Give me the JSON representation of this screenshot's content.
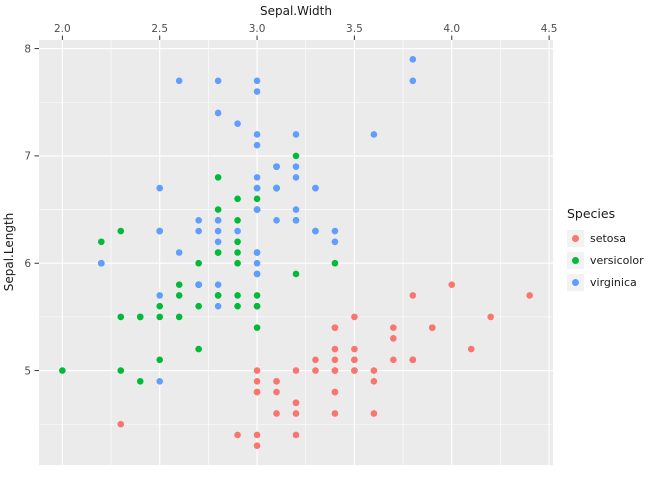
{
  "chart_data": {
    "type": "scatter",
    "xlabel": "Sepal.Width",
    "ylabel": "Sepal.Length",
    "axis_position": {
      "x": "top",
      "y": "left"
    },
    "xlim": [
      1.88,
      4.52
    ],
    "ylim": [
      4.12,
      8.08
    ],
    "x_ticks": [
      2.0,
      2.5,
      3.0,
      3.5,
      4.0,
      4.5
    ],
    "x_tick_labels": [
      "2.0",
      "2.5",
      "3.0",
      "3.5",
      "4.0",
      "4.5"
    ],
    "y_ticks": [
      5,
      6,
      7,
      8
    ],
    "y_tick_labels": [
      "5",
      "6",
      "7",
      "8"
    ],
    "x_minor_ticks": [
      2.25,
      2.75,
      3.25,
      3.75,
      4.25
    ],
    "y_minor_ticks": [
      4.5,
      5.5,
      6.5,
      7.5
    ],
    "grid": "on",
    "grid_color": "#FFFFFF",
    "panel_background": "#EBEBEB",
    "tick_mark_color": "#333333",
    "legend": {
      "title": "Species",
      "position": "right"
    },
    "series": [
      {
        "name": "setosa",
        "color": "#F8766D",
        "points": [
          [
            3.5,
            5.1
          ],
          [
            3.0,
            4.9
          ],
          [
            3.2,
            4.7
          ],
          [
            3.1,
            4.6
          ],
          [
            3.6,
            5.0
          ],
          [
            3.9,
            5.4
          ],
          [
            3.4,
            4.6
          ],
          [
            3.4,
            5.0
          ],
          [
            2.9,
            4.4
          ],
          [
            3.1,
            4.9
          ],
          [
            3.7,
            5.4
          ],
          [
            3.4,
            4.8
          ],
          [
            3.0,
            4.8
          ],
          [
            3.0,
            4.3
          ],
          [
            4.0,
            5.8
          ],
          [
            4.4,
            5.7
          ],
          [
            3.9,
            5.4
          ],
          [
            3.5,
            5.1
          ],
          [
            3.8,
            5.7
          ],
          [
            3.8,
            5.1
          ],
          [
            3.4,
            5.4
          ],
          [
            3.7,
            5.1
          ],
          [
            3.6,
            4.6
          ],
          [
            3.3,
            5.1
          ],
          [
            3.4,
            4.8
          ],
          [
            3.0,
            5.0
          ],
          [
            3.4,
            5.0
          ],
          [
            3.5,
            5.2
          ],
          [
            3.4,
            5.2
          ],
          [
            3.2,
            4.7
          ],
          [
            3.1,
            4.8
          ],
          [
            3.4,
            5.4
          ],
          [
            4.1,
            5.2
          ],
          [
            4.2,
            5.5
          ],
          [
            3.1,
            4.9
          ],
          [
            3.2,
            5.0
          ],
          [
            3.5,
            5.5
          ],
          [
            3.6,
            4.9
          ],
          [
            3.0,
            4.4
          ],
          [
            3.4,
            5.1
          ],
          [
            3.5,
            5.0
          ],
          [
            2.3,
            4.5
          ],
          [
            3.2,
            4.4
          ],
          [
            3.5,
            5.0
          ],
          [
            3.8,
            5.1
          ],
          [
            3.0,
            4.8
          ],
          [
            3.8,
            5.1
          ],
          [
            3.2,
            4.6
          ],
          [
            3.7,
            5.3
          ],
          [
            3.3,
            5.0
          ]
        ]
      },
      {
        "name": "versicolor",
        "color": "#00BA38",
        "points": [
          [
            3.2,
            7.0
          ],
          [
            3.2,
            6.4
          ],
          [
            3.1,
            6.9
          ],
          [
            2.3,
            5.5
          ],
          [
            2.8,
            6.5
          ],
          [
            2.8,
            5.7
          ],
          [
            3.3,
            6.3
          ],
          [
            2.4,
            4.9
          ],
          [
            2.9,
            6.6
          ],
          [
            2.7,
            5.2
          ],
          [
            2.0,
            5.0
          ],
          [
            3.0,
            5.9
          ],
          [
            2.2,
            6.0
          ],
          [
            2.9,
            6.1
          ],
          [
            2.9,
            5.6
          ],
          [
            3.1,
            6.7
          ],
          [
            3.0,
            5.6
          ],
          [
            2.7,
            5.8
          ],
          [
            2.2,
            6.2
          ],
          [
            2.5,
            5.6
          ],
          [
            3.2,
            5.9
          ],
          [
            2.8,
            6.1
          ],
          [
            2.5,
            6.3
          ],
          [
            2.8,
            6.1
          ],
          [
            2.9,
            6.4
          ],
          [
            3.0,
            6.6
          ],
          [
            2.8,
            6.8
          ],
          [
            3.0,
            6.7
          ],
          [
            2.9,
            6.0
          ],
          [
            2.6,
            5.7
          ],
          [
            2.4,
            5.5
          ],
          [
            2.4,
            5.5
          ],
          [
            2.7,
            5.8
          ],
          [
            2.7,
            6.0
          ],
          [
            3.0,
            5.4
          ],
          [
            3.4,
            6.0
          ],
          [
            3.1,
            6.7
          ],
          [
            2.3,
            6.3
          ],
          [
            3.0,
            5.6
          ],
          [
            2.5,
            5.5
          ],
          [
            2.6,
            5.5
          ],
          [
            3.0,
            6.1
          ],
          [
            2.6,
            5.8
          ],
          [
            2.3,
            5.0
          ],
          [
            2.7,
            5.6
          ],
          [
            3.0,
            5.7
          ],
          [
            2.9,
            5.7
          ],
          [
            2.9,
            6.2
          ],
          [
            2.5,
            5.1
          ],
          [
            2.8,
            5.7
          ]
        ]
      },
      {
        "name": "virginica",
        "color": "#619CFF",
        "points": [
          [
            3.3,
            6.3
          ],
          [
            2.7,
            5.8
          ],
          [
            3.0,
            7.1
          ],
          [
            2.9,
            6.3
          ],
          [
            3.0,
            6.5
          ],
          [
            3.0,
            7.6
          ],
          [
            2.5,
            4.9
          ],
          [
            2.9,
            7.3
          ],
          [
            2.5,
            6.7
          ],
          [
            3.6,
            7.2
          ],
          [
            3.2,
            6.5
          ],
          [
            2.7,
            6.4
          ],
          [
            3.0,
            6.8
          ],
          [
            2.5,
            5.7
          ],
          [
            2.8,
            5.8
          ],
          [
            3.2,
            6.4
          ],
          [
            3.0,
            6.5
          ],
          [
            3.8,
            7.7
          ],
          [
            2.6,
            7.7
          ],
          [
            2.2,
            6.0
          ],
          [
            3.2,
            6.9
          ],
          [
            2.8,
            5.6
          ],
          [
            2.8,
            7.7
          ],
          [
            2.7,
            6.3
          ],
          [
            3.3,
            6.7
          ],
          [
            3.2,
            7.2
          ],
          [
            2.8,
            6.2
          ],
          [
            3.0,
            6.1
          ],
          [
            2.8,
            6.4
          ],
          [
            3.0,
            7.2
          ],
          [
            2.8,
            7.4
          ],
          [
            3.8,
            7.9
          ],
          [
            2.8,
            6.4
          ],
          [
            2.8,
            6.3
          ],
          [
            2.6,
            6.1
          ],
          [
            3.0,
            7.7
          ],
          [
            3.4,
            6.3
          ],
          [
            3.1,
            6.4
          ],
          [
            3.0,
            6.0
          ],
          [
            3.1,
            6.9
          ],
          [
            3.1,
            6.7
          ],
          [
            3.1,
            6.9
          ],
          [
            2.7,
            5.8
          ],
          [
            3.2,
            6.8
          ],
          [
            3.3,
            6.7
          ],
          [
            3.0,
            6.7
          ],
          [
            2.5,
            6.3
          ],
          [
            3.0,
            6.5
          ],
          [
            3.4,
            6.2
          ],
          [
            3.0,
            5.9
          ]
        ]
      }
    ]
  }
}
